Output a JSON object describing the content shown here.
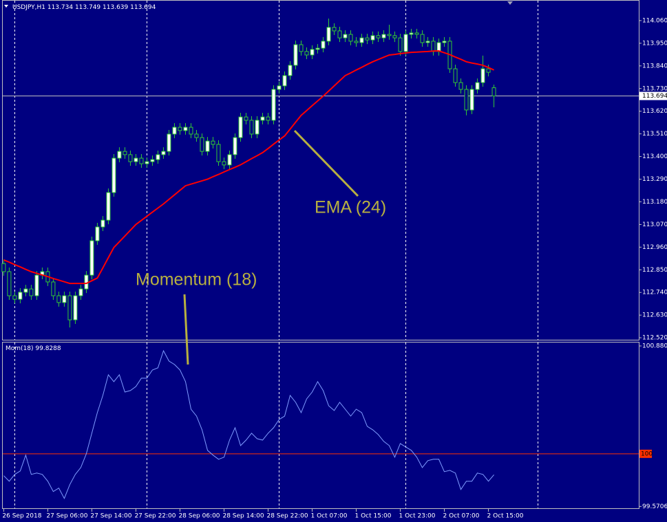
{
  "chart_data": [
    {
      "type": "candlestick",
      "title": "USDJPY,H1",
      "open": [
        112.88,
        112.841,
        112.724,
        112.707,
        112.741,
        112.757,
        112.724,
        112.824,
        112.841,
        112.791,
        112.724,
        112.691,
        112.724,
        112.607,
        112.724,
        112.757,
        112.824,
        112.991,
        113.058,
        113.091,
        113.225,
        113.392,
        113.425,
        113.409,
        113.375,
        113.392,
        113.365,
        113.375,
        113.385,
        113.409,
        113.425,
        113.509,
        113.542,
        113.526,
        113.542,
        113.509,
        113.492,
        113.425,
        113.475,
        113.459,
        113.375,
        113.359,
        113.409,
        113.492,
        113.592,
        113.576,
        113.509,
        113.576,
        113.592,
        113.576,
        113.726,
        113.743,
        113.793,
        113.843,
        113.943,
        113.91,
        113.893,
        113.92,
        113.926,
        113.96,
        114.027,
        114.01,
        113.976,
        113.993,
        113.96,
        113.953,
        113.976,
        113.966,
        113.987,
        113.976,
        113.993,
        113.987,
        113.976,
        113.91,
        113.993,
        114.0,
        113.993,
        113.953,
        113.96,
        113.91,
        113.953,
        113.96,
        113.826,
        113.759,
        113.726,
        113.626,
        113.726,
        113.759,
        113.826,
        113.734
      ],
      "high": [
        112.9,
        112.861,
        112.744,
        112.761,
        112.777,
        112.777,
        112.844,
        112.861,
        112.861,
        112.811,
        112.744,
        112.744,
        112.744,
        112.744,
        112.777,
        112.844,
        113.011,
        113.078,
        113.111,
        113.245,
        113.412,
        113.445,
        113.445,
        113.429,
        113.412,
        113.412,
        113.395,
        113.405,
        113.429,
        113.445,
        113.529,
        113.562,
        113.562,
        113.562,
        113.562,
        113.529,
        113.512,
        113.495,
        113.495,
        113.479,
        113.395,
        113.429,
        113.512,
        113.612,
        113.612,
        113.596,
        113.596,
        113.612,
        113.612,
        113.746,
        113.763,
        113.813,
        113.863,
        113.963,
        113.963,
        113.93,
        113.94,
        113.946,
        113.98,
        114.07,
        114.047,
        114.03,
        114.013,
        114.013,
        113.98,
        113.996,
        113.996,
        114.007,
        114.007,
        114.013,
        114.04,
        114.007,
        113.996,
        114.013,
        114.02,
        114.02,
        114.013,
        113.98,
        113.98,
        113.973,
        113.98,
        113.98,
        113.846,
        113.779,
        113.746,
        113.746,
        113.779,
        113.89,
        113.846,
        113.749
      ],
      "low": [
        112.821,
        112.704,
        112.687,
        112.687,
        112.721,
        112.704,
        112.704,
        112.804,
        112.771,
        112.704,
        112.671,
        112.671,
        112.57,
        112.587,
        112.704,
        112.737,
        112.804,
        112.971,
        113.038,
        113.071,
        113.205,
        113.372,
        113.389,
        113.355,
        113.355,
        113.345,
        113.345,
        113.355,
        113.365,
        113.389,
        113.405,
        113.489,
        113.506,
        113.506,
        113.489,
        113.472,
        113.405,
        113.405,
        113.439,
        113.355,
        113.339,
        113.339,
        113.389,
        113.472,
        113.556,
        113.489,
        113.489,
        113.556,
        113.556,
        113.556,
        113.706,
        113.723,
        113.773,
        113.823,
        113.89,
        113.873,
        113.873,
        113.9,
        113.906,
        113.94,
        113.99,
        113.956,
        113.956,
        113.94,
        113.933,
        113.933,
        113.946,
        113.946,
        113.956,
        113.956,
        113.967,
        113.956,
        113.89,
        113.89,
        113.973,
        113.973,
        113.933,
        113.933,
        113.89,
        113.89,
        113.933,
        113.806,
        113.739,
        113.706,
        113.6,
        113.606,
        113.706,
        113.739,
        113.789,
        113.639
      ],
      "close": [
        112.841,
        112.724,
        112.707,
        112.741,
        112.757,
        112.724,
        112.824,
        112.841,
        112.791,
        112.724,
        112.691,
        112.724,
        112.607,
        112.724,
        112.757,
        112.824,
        112.991,
        113.058,
        113.091,
        113.225,
        113.392,
        113.425,
        113.409,
        113.375,
        113.392,
        113.365,
        113.375,
        113.385,
        113.409,
        113.425,
        113.509,
        113.542,
        113.526,
        113.542,
        113.509,
        113.492,
        113.425,
        113.475,
        113.459,
        113.375,
        113.359,
        113.409,
        113.492,
        113.592,
        113.576,
        113.509,
        113.576,
        113.592,
        113.576,
        113.726,
        113.743,
        113.793,
        113.843,
        113.943,
        113.91,
        113.893,
        113.92,
        113.926,
        113.96,
        114.027,
        114.01,
        113.976,
        113.993,
        113.96,
        113.953,
        113.976,
        113.966,
        113.987,
        113.976,
        113.993,
        113.987,
        113.976,
        113.91,
        113.993,
        114.0,
        113.993,
        113.953,
        113.96,
        113.91,
        113.953,
        113.96,
        113.826,
        113.759,
        113.726,
        113.626,
        113.726,
        113.759,
        113.826,
        113.809,
        113.694
      ],
      "up_color": "#ffffff",
      "down_color": "#000080",
      "wick_color": "#33cc33",
      "overlay": {
        "annotation": "EMA (24)",
        "color": "#ff0000",
        "values": [
          112.898,
          112.887,
          112.875,
          112.864,
          112.852,
          112.841,
          112.833,
          112.825,
          112.817,
          112.808,
          112.8,
          112.792,
          112.784,
          112.784,
          112.784,
          112.784,
          112.797,
          112.81,
          112.859,
          112.909,
          112.958,
          112.986,
          113.014,
          113.042,
          113.07,
          113.09,
          113.11,
          113.13,
          113.15,
          113.17,
          113.192,
          113.214,
          113.236,
          113.258,
          113.266,
          113.274,
          113.282,
          113.29,
          113.302,
          113.313,
          113.325,
          113.337,
          113.348,
          113.36,
          113.375,
          113.39,
          113.404,
          113.419,
          113.439,
          113.46,
          113.48,
          113.5,
          113.533,
          113.567,
          113.6,
          113.623,
          113.647,
          113.67,
          113.693,
          113.718,
          113.743,
          113.768,
          113.793,
          113.806,
          113.82,
          113.833,
          113.847,
          113.86,
          113.871,
          113.882,
          113.893,
          113.896,
          113.9,
          113.903,
          113.906,
          113.907,
          113.909,
          113.91,
          113.912,
          113.913,
          113.904,
          113.895,
          113.883,
          113.872,
          113.86,
          113.854,
          113.849,
          113.843,
          113.832,
          113.82
        ]
      },
      "xlim": [
        -0.3,
        115.3
      ],
      "xticks": [
        {
          "value": 0,
          "label": "26 Sep 2018"
        },
        {
          "value": 8,
          "label": "27 Sep 06:00"
        },
        {
          "value": 16,
          "label": "27 Sep 14:00"
        },
        {
          "value": 24,
          "label": "27 Sep 22:00"
        },
        {
          "value": 32,
          "label": "28 Sep 06:00"
        },
        {
          "value": 40,
          "label": "28 Sep 14:00"
        },
        {
          "value": 48,
          "label": "28 Sep 22:00"
        },
        {
          "value": 56,
          "label": "1 Oct 07:00"
        },
        {
          "value": 64,
          "label": "1 Oct 15:00"
        },
        {
          "value": 72,
          "label": "1 Oct 23:00"
        },
        {
          "value": 80,
          "label": "2 Oct 07:00"
        },
        {
          "value": 88,
          "label": "2 Oct 15:00"
        }
      ],
      "vgrid": [
        2,
        26,
        50,
        73,
        97
      ],
      "ylim": [
        112.507,
        114.16
      ],
      "yticks": [
        {
          "value": 114.06,
          "label": "114.060"
        },
        {
          "value": 113.95,
          "label": "113.950"
        },
        {
          "value": 113.84,
          "label": "113.840"
        },
        {
          "value": 113.73,
          "label": "113.730"
        },
        {
          "value": 113.62,
          "label": "113.620"
        },
        {
          "value": 113.51,
          "label": "113.510"
        },
        {
          "value": 113.4,
          "label": "113.400"
        },
        {
          "value": 113.29,
          "label": "113.290"
        },
        {
          "value": 113.18,
          "label": "113.180"
        },
        {
          "value": 113.07,
          "label": "113.070"
        },
        {
          "value": 112.96,
          "label": "112.960"
        },
        {
          "value": 112.85,
          "label": "112.850"
        },
        {
          "value": 112.74,
          "label": "112.740"
        },
        {
          "value": 112.63,
          "label": "112.630"
        },
        {
          "value": 112.52,
          "label": "112.520"
        }
      ]
    },
    {
      "type": "line",
      "title": "Mom(18)",
      "annotation": "Momentum (18)",
      "color": "#7f9cff",
      "values": [
        99.821,
        99.776,
        99.832,
        99.86,
        99.989,
        99.832,
        99.843,
        99.832,
        99.776,
        99.692,
        99.72,
        99.636,
        99.748,
        99.832,
        99.888,
        100.0,
        100.168,
        100.336,
        100.476,
        100.645,
        100.589,
        100.645,
        100.504,
        100.516,
        100.549,
        100.617,
        100.617,
        100.684,
        100.701,
        100.841,
        100.757,
        100.729,
        100.684,
        100.589,
        100.364,
        100.308,
        100.196,
        100.028,
        99.989,
        99.955,
        99.972,
        100.112,
        100.213,
        100.067,
        100.112,
        100.168,
        100.123,
        100.112,
        100.168,
        100.213,
        100.28,
        100.308,
        100.476,
        100.42,
        100.336,
        100.448,
        100.504,
        100.589,
        100.516,
        100.392,
        100.353,
        100.42,
        100.364,
        100.308,
        100.364,
        100.336,
        100.224,
        100.196,
        100.157,
        100.101,
        100.067,
        99.972,
        100.084,
        100.056,
        100.028,
        99.972,
        99.888,
        99.944,
        99.955,
        99.955,
        99.854,
        99.865,
        99.843,
        99.709,
        99.776,
        99.776,
        99.843,
        99.832,
        99.776,
        99.8288
      ],
      "ylim": [
        99.55,
        100.914
      ],
      "yticks": [
        100.8802,
        99.5706
      ],
      "level": 100,
      "level_color": "#ff3000"
    }
  ]
}
